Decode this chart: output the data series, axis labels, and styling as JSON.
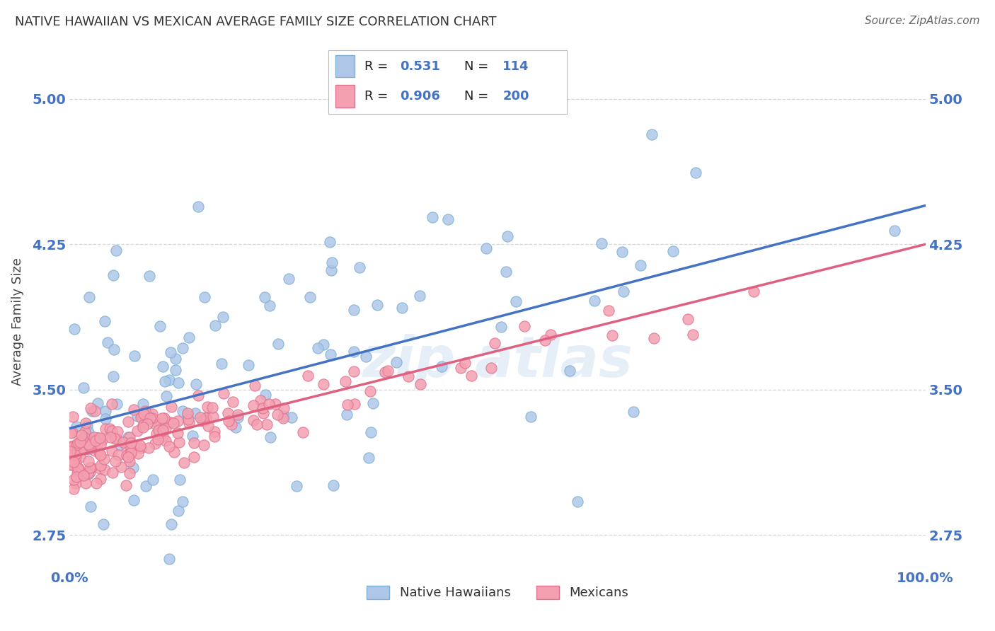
{
  "title": "NATIVE HAWAIIAN VS MEXICAN AVERAGE FAMILY SIZE CORRELATION CHART",
  "source": "Source: ZipAtlas.com",
  "ylabel": "Average Family Size",
  "xlim": [
    0.0,
    1.0
  ],
  "ylim": [
    2.58,
    5.12
  ],
  "yticks": [
    2.75,
    3.5,
    4.25,
    5.0
  ],
  "ytick_labels": [
    "2.75",
    "3.50",
    "4.25",
    "5.00"
  ],
  "xtick_labels": [
    "0.0%",
    "100.0%"
  ],
  "background_color": "#ffffff",
  "grid_color": "#cccccc",
  "blue_line_color": "#4472c4",
  "pink_line_color": "#e06080",
  "scatter_blue_fill": "#aec7e8",
  "scatter_blue_edge": "#7bafd4",
  "scatter_pink_fill": "#f4a0b0",
  "scatter_pink_edge": "#e07090",
  "title_color": "#333333",
  "tick_color": "#4472c4",
  "r_val_color": "#4472c4",
  "n_val_color": "#4472c4",
  "watermark_color": "#aec7e8",
  "legend_r1_val": "0.531",
  "legend_n1_val": "114",
  "legend_r2_val": "0.906",
  "legend_n2_val": "200"
}
